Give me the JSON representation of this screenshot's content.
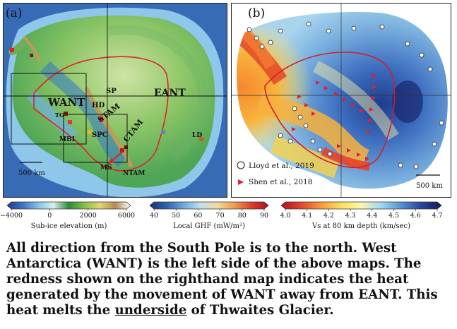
{
  "panel_a": {
    "label": "(a)",
    "regions": [
      {
        "id": "want",
        "text": "WANT"
      },
      {
        "id": "eant",
        "text": "EANT"
      },
      {
        "id": "sp",
        "text": "SP"
      },
      {
        "id": "hd",
        "text": "HD"
      },
      {
        "id": "stam",
        "text": "STAM"
      },
      {
        "id": "ctam",
        "text": "CTAM"
      },
      {
        "id": "spc",
        "text": "SPC"
      },
      {
        "id": "tg",
        "text": "TG"
      },
      {
        "id": "mbl",
        "text": "MBL"
      },
      {
        "id": "ld",
        "text": "LD"
      },
      {
        "id": "ms",
        "text": "MS"
      },
      {
        "id": "ntam",
        "text": "NTAM"
      }
    ],
    "scalebar": "500 km"
  },
  "panel_b": {
    "label": "(b)",
    "legend": [
      {
        "marker": "open-circle",
        "text": "Lloyd et al., 2019"
      },
      {
        "marker": "red-triangle",
        "text": "Shen et al., 2018"
      }
    ],
    "scalebar": "500 km"
  },
  "colorbars": [
    {
      "title": "Sub-ice elevation (m)",
      "ticks": [
        "−4000",
        "0",
        "2000",
        "6000"
      ],
      "colors": [
        "#243a80",
        "#3a72c0",
        "#86c0e8",
        "#d9efea",
        "#2b8a3a",
        "#83c146",
        "#e3d575",
        "#b68a54",
        "#ffffff"
      ]
    },
    {
      "title": "Local GHF (mW/m²)",
      "ticks": [
        "40",
        "50",
        "60",
        "70",
        "80",
        "90"
      ],
      "colors": [
        "#16306e",
        "#2f63ae",
        "#6fa9da",
        "#bfe0f0",
        "#f2d89c",
        "#f09a4e",
        "#d9402c",
        "#a8101f"
      ]
    },
    {
      "title": "Vs at 80 km depth (km/sec)",
      "ticks": [
        "4.0",
        "4.1",
        "4.2",
        "4.3",
        "4.4",
        "4.5",
        "4.6",
        "4.7"
      ],
      "colors": [
        "#b01020",
        "#e2452c",
        "#f99a3a",
        "#fde05a",
        "#fbf6b0",
        "#9fd7ef",
        "#5291cf",
        "#26459b",
        "#141a52"
      ]
    }
  ],
  "caption": {
    "part1": "All direction from the South Pole is to the north. West Antarctica (WANT) is the left side of the above maps. The redness shown on the righthand map indicates the heat generated by the movement of WANT away from EANT. This heat melts the ",
    "underlined": "underside",
    "part2": " of Thwaites Glacier."
  }
}
